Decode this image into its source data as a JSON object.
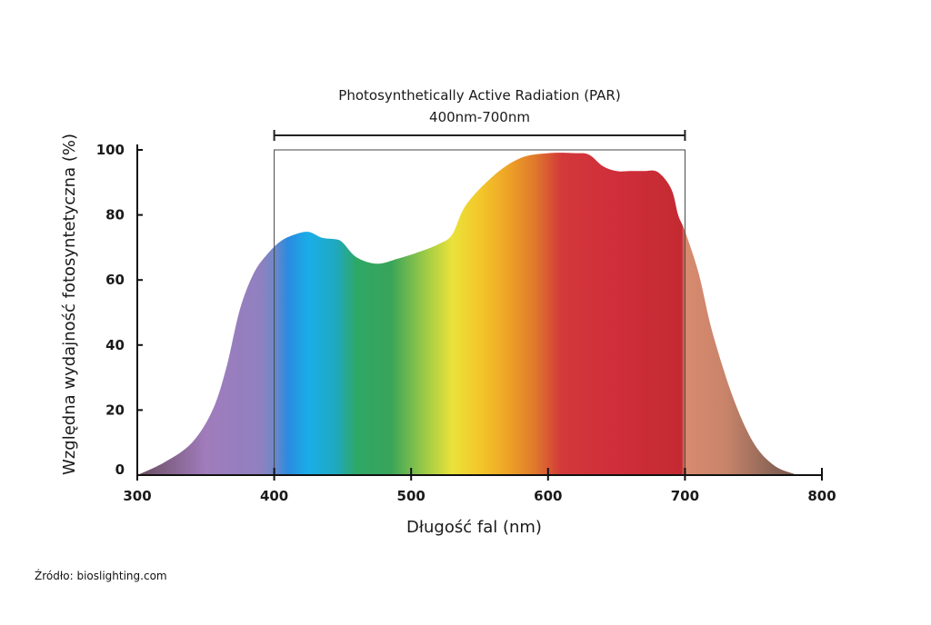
{
  "chart_data": {
    "type": "area",
    "title": "",
    "xlabel": "Długość fal (nm)",
    "ylabel": "Względna wydajność fotosyntetyczna (%)",
    "xlim": [
      300,
      800
    ],
    "ylim": [
      0,
      100
    ],
    "x_ticks": [
      300,
      400,
      500,
      600,
      700,
      800
    ],
    "y_ticks": [
      0,
      20,
      40,
      60,
      80,
      100
    ],
    "grid": false,
    "x": [
      300,
      320,
      340,
      355,
      365,
      375,
      385,
      395,
      405,
      415,
      425,
      435,
      445,
      450,
      460,
      475,
      490,
      505,
      520,
      530,
      540,
      560,
      580,
      600,
      620,
      630,
      640,
      650,
      660,
      670,
      680,
      690,
      695,
      700,
      710,
      720,
      735,
      750,
      765,
      780,
      785
    ],
    "values": [
      0,
      4,
      10,
      20,
      33,
      51,
      62,
      68,
      72,
      74,
      74.8,
      73,
      72.5,
      71.5,
      67,
      65,
      66.5,
      68.5,
      71,
      74,
      83,
      92,
      97.5,
      99,
      99,
      98.5,
      95,
      93.5,
      93.5,
      93.5,
      93.2,
      88,
      80,
      75,
      62,
      44,
      24,
      10,
      3,
      0.3,
      0
    ],
    "annotations": [
      {
        "text": "Photosynthetically Active Radiation (PAR)",
        "range": [
          400,
          700
        ]
      },
      {
        "text": "400nm-700nm",
        "range": [
          400,
          700
        ]
      }
    ],
    "highlight_range": [
      400,
      700
    ]
  },
  "source": "Źródło: bioslighting.com"
}
